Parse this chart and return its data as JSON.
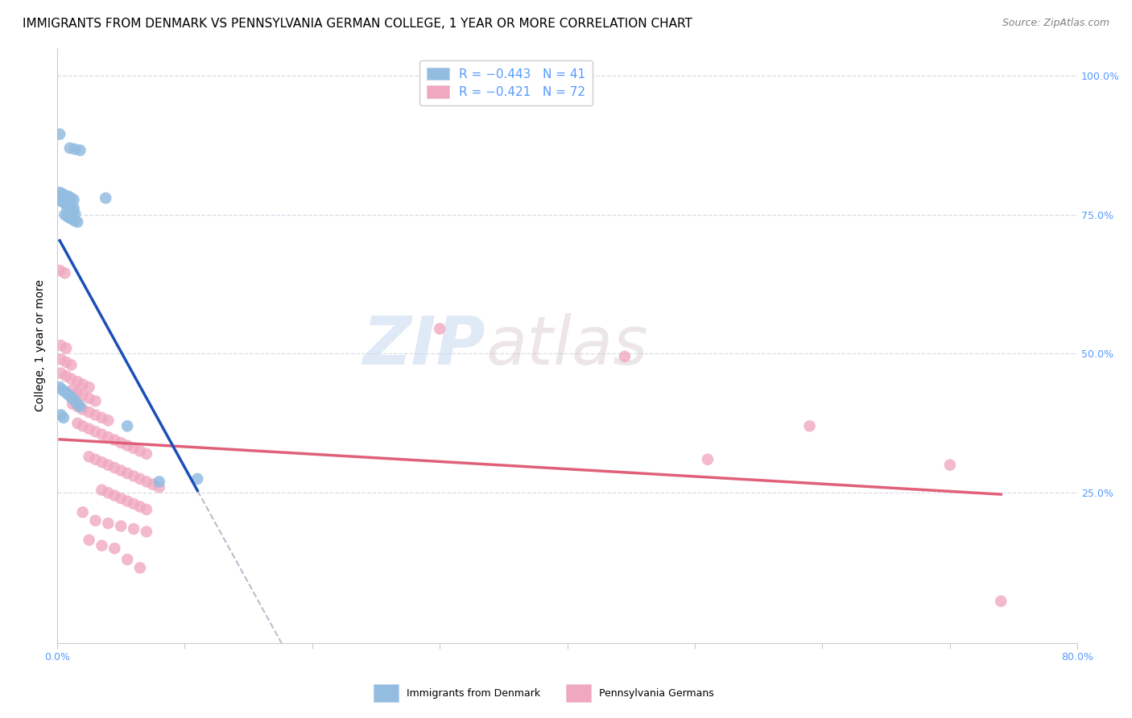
{
  "title": "IMMIGRANTS FROM DENMARK VS PENNSYLVANIA GERMAN COLLEGE, 1 YEAR OR MORE CORRELATION CHART",
  "source": "Source: ZipAtlas.com",
  "ylabel_left": "College, 1 year or more",
  "xlim": [
    0.0,
    0.8
  ],
  "ylim": [
    -0.02,
    1.05
  ],
  "blue_scatter": [
    [
      0.002,
      0.895
    ],
    [
      0.01,
      0.87
    ],
    [
      0.014,
      0.868
    ],
    [
      0.018,
      0.866
    ],
    [
      0.002,
      0.79
    ],
    [
      0.004,
      0.788
    ],
    [
      0.006,
      0.785
    ],
    [
      0.009,
      0.783
    ],
    [
      0.011,
      0.78
    ],
    [
      0.013,
      0.777
    ],
    [
      0.003,
      0.775
    ],
    [
      0.005,
      0.772
    ],
    [
      0.007,
      0.77
    ],
    [
      0.009,
      0.768
    ],
    [
      0.011,
      0.765
    ],
    [
      0.013,
      0.762
    ],
    [
      0.008,
      0.76
    ],
    [
      0.01,
      0.757
    ],
    [
      0.012,
      0.755
    ],
    [
      0.014,
      0.752
    ],
    [
      0.006,
      0.75
    ],
    [
      0.008,
      0.747
    ],
    [
      0.01,
      0.744
    ],
    [
      0.012,
      0.742
    ],
    [
      0.014,
      0.739
    ],
    [
      0.016,
      0.737
    ],
    [
      0.038,
      0.78
    ],
    [
      0.002,
      0.44
    ],
    [
      0.004,
      0.435
    ],
    [
      0.006,
      0.432
    ],
    [
      0.008,
      0.428
    ],
    [
      0.01,
      0.424
    ],
    [
      0.012,
      0.42
    ],
    [
      0.014,
      0.415
    ],
    [
      0.016,
      0.41
    ],
    [
      0.018,
      0.405
    ],
    [
      0.003,
      0.39
    ],
    [
      0.005,
      0.385
    ],
    [
      0.055,
      0.37
    ],
    [
      0.11,
      0.275
    ],
    [
      0.08,
      0.27
    ]
  ],
  "pink_scatter": [
    [
      0.002,
      0.65
    ],
    [
      0.006,
      0.645
    ],
    [
      0.003,
      0.515
    ],
    [
      0.007,
      0.51
    ],
    [
      0.003,
      0.49
    ],
    [
      0.007,
      0.485
    ],
    [
      0.011,
      0.48
    ],
    [
      0.003,
      0.465
    ],
    [
      0.007,
      0.46
    ],
    [
      0.011,
      0.455
    ],
    [
      0.016,
      0.45
    ],
    [
      0.02,
      0.445
    ],
    [
      0.025,
      0.44
    ],
    [
      0.012,
      0.435
    ],
    [
      0.016,
      0.43
    ],
    [
      0.02,
      0.425
    ],
    [
      0.025,
      0.42
    ],
    [
      0.03,
      0.415
    ],
    [
      0.012,
      0.41
    ],
    [
      0.016,
      0.405
    ],
    [
      0.02,
      0.4
    ],
    [
      0.025,
      0.395
    ],
    [
      0.03,
      0.39
    ],
    [
      0.035,
      0.385
    ],
    [
      0.04,
      0.38
    ],
    [
      0.016,
      0.375
    ],
    [
      0.02,
      0.37
    ],
    [
      0.025,
      0.365
    ],
    [
      0.03,
      0.36
    ],
    [
      0.035,
      0.355
    ],
    [
      0.04,
      0.35
    ],
    [
      0.045,
      0.345
    ],
    [
      0.05,
      0.34
    ],
    [
      0.055,
      0.335
    ],
    [
      0.06,
      0.33
    ],
    [
      0.065,
      0.325
    ],
    [
      0.07,
      0.32
    ],
    [
      0.025,
      0.315
    ],
    [
      0.03,
      0.31
    ],
    [
      0.035,
      0.305
    ],
    [
      0.04,
      0.3
    ],
    [
      0.045,
      0.295
    ],
    [
      0.05,
      0.29
    ],
    [
      0.055,
      0.285
    ],
    [
      0.06,
      0.28
    ],
    [
      0.065,
      0.275
    ],
    [
      0.07,
      0.27
    ],
    [
      0.075,
      0.265
    ],
    [
      0.08,
      0.26
    ],
    [
      0.035,
      0.255
    ],
    [
      0.04,
      0.25
    ],
    [
      0.045,
      0.245
    ],
    [
      0.05,
      0.24
    ],
    [
      0.055,
      0.235
    ],
    [
      0.06,
      0.23
    ],
    [
      0.065,
      0.225
    ],
    [
      0.07,
      0.22
    ],
    [
      0.02,
      0.215
    ],
    [
      0.03,
      0.2
    ],
    [
      0.04,
      0.195
    ],
    [
      0.05,
      0.19
    ],
    [
      0.06,
      0.185
    ],
    [
      0.07,
      0.18
    ],
    [
      0.025,
      0.165
    ],
    [
      0.035,
      0.155
    ],
    [
      0.045,
      0.15
    ],
    [
      0.055,
      0.13
    ],
    [
      0.065,
      0.115
    ],
    [
      0.3,
      0.545
    ],
    [
      0.445,
      0.495
    ],
    [
      0.51,
      0.31
    ],
    [
      0.59,
      0.37
    ],
    [
      0.7,
      0.3
    ],
    [
      0.74,
      0.055
    ]
  ],
  "blue_line_color": "#1a4fba",
  "pink_line_color": "#e0607a",
  "dashed_line_color": "#b0b8c8",
  "scatter_blue_color": "#92bce0",
  "scatter_pink_color": "#f0a8c0",
  "watermark_zip": "ZIP",
  "watermark_atlas": "atlas",
  "grid_color": "#d8dde8",
  "title_fontsize": 11,
  "source_fontsize": 9,
  "axis_label_fontsize": 10,
  "tick_fontsize": 9,
  "legend_fontsize": 11,
  "right_tick_color": "#5599ff",
  "bottom_tick_color": "#5599ff"
}
